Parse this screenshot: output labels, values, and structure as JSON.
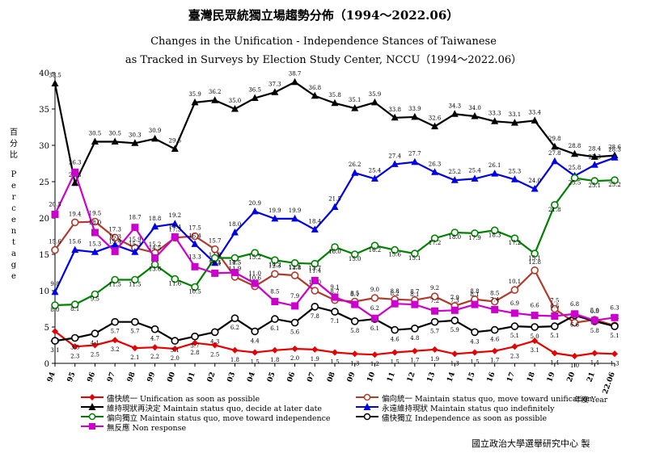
{
  "title_zh": "臺灣民眾統獨立場趨勢分佈（1994～2022.06）",
  "title_en_1": "Changes in the Unification - Independence Stances of Taiwanese",
  "title_en_2": "as Tracked in Surveys by Election Study Center, NCCU（1994～2022.06）",
  "ylabel_chars": [
    "百",
    "分",
    "比",
    "P",
    "e",
    "r",
    "c",
    "e",
    "n",
    "t",
    "a",
    "g",
    "e"
  ],
  "xunit": "年度 Year",
  "credit": "國立政治大學選舉研究中心 製",
  "chart_data": {
    "type": "line",
    "x": [
      "94",
      "95",
      "96",
      "97",
      "98",
      "99",
      "00",
      "01",
      "02",
      "03",
      "04",
      "05",
      "06",
      "07",
      "08",
      "09",
      "10",
      "11",
      "12",
      "13",
      "14",
      "15",
      "16",
      "17",
      "18",
      "19",
      "20",
      "21",
      "22.06"
    ],
    "ylim": [
      0,
      40
    ],
    "yticks": [
      0,
      5,
      10,
      15,
      20,
      25,
      30,
      35,
      40
    ],
    "series": [
      {
        "name": "儘快統一 Unification as soon as possible",
        "color": "#e60000",
        "marker": "diamond",
        "values": [
          4.4,
          2.3,
          2.5,
          3.2,
          2.1,
          2.2,
          2.0,
          2.8,
          2.5,
          1.8,
          1.5,
          1.8,
          2.0,
          1.9,
          1.5,
          1.3,
          1.2,
          1.5,
          1.7,
          1.9,
          1.3,
          1.5,
          1.7,
          2.3,
          3.1,
          1.4,
          1.0,
          1.4,
          1.3
        ]
      },
      {
        "name": "偏向統一 Maintain status quo, move toward unification",
        "color": "#b03a2e",
        "marker": "circle",
        "values": [
          15.6,
          19.4,
          19.5,
          17.3,
          15.9,
          15.2,
          17.3,
          17.5,
          15.7,
          11.9,
          10.6,
          12.3,
          12.1,
          10.0,
          8.7,
          8.5,
          9.0,
          8.8,
          8.7,
          9.2,
          7.9,
          8.8,
          8.5,
          10.1,
          12.8,
          7.5,
          5.6,
          6.0,
          5.2
        ]
      },
      {
        "name": "維持現狀再決定 Maintain status quo, decide at later date",
        "color": "#000000",
        "marker": "triangle",
        "values": [
          38.5,
          24.8,
          30.5,
          30.5,
          30.3,
          30.9,
          29.5,
          35.9,
          36.2,
          35.0,
          36.5,
          37.3,
          38.7,
          36.8,
          35.8,
          35.1,
          35.9,
          33.8,
          33.9,
          32.6,
          34.3,
          34.0,
          33.3,
          33.1,
          33.4,
          29.8,
          28.8,
          28.4,
          28.6
        ]
      },
      {
        "name": "永遠維持現狀 Maintain status quo indefinitely",
        "color": "#0000e6",
        "marker": "triangle",
        "values": [
          9.8,
          15.6,
          15.3,
          16.3,
          15.3,
          18.8,
          19.2,
          16.4,
          13.8,
          18.0,
          20.9,
          19.9,
          19.9,
          18.4,
          21.5,
          26.2,
          25.4,
          27.4,
          27.7,
          26.3,
          25.2,
          25.4,
          26.1,
          25.3,
          24.0,
          27.8,
          25.8,
          27.3,
          28.3
        ]
      },
      {
        "name": "偏向獨立 Maintain status quo, move toward independence",
        "color": "#008000",
        "marker": "circle",
        "values": [
          8.0,
          8.1,
          9.5,
          11.5,
          11.5,
          13.6,
          11.6,
          10.5,
          14.5,
          14.5,
          15.2,
          14.2,
          13.8,
          13.7,
          16.0,
          15.0,
          16.2,
          15.6,
          15.1,
          17.2,
          18.0,
          17.9,
          18.3,
          17.2,
          15.1,
          21.8,
          25.5,
          25.1,
          25.2
        ]
      },
      {
        "name": "儘快獨立 Independence as soon as possible",
        "color": "#000000",
        "marker": "circle",
        "values": [
          3.1,
          3.5,
          4.1,
          5.7,
          5.7,
          4.7,
          3.1,
          3.7,
          4.3,
          6.2,
          4.4,
          6.1,
          5.6,
          7.8,
          7.1,
          5.8,
          6.1,
          4.6,
          4.8,
          5.7,
          5.9,
          4.3,
          4.6,
          5.1,
          5.0,
          5.1,
          6.6,
          5.8,
          5.1
        ]
      },
      {
        "name": "無反應 Non response",
        "color": "#cc00cc",
        "marker": "square",
        "values": [
          20.5,
          26.3,
          18.0,
          15.4,
          18.7,
          14.5,
          17.4,
          13.3,
          12.4,
          12.5,
          11.0,
          8.5,
          7.9,
          11.4,
          9.1,
          8.1,
          6.2,
          8.2,
          8.1,
          7.2,
          7.3,
          8.1,
          7.4,
          6.9,
          6.6,
          6.5,
          6.8,
          5.9,
          6.3
        ]
      }
    ]
  }
}
